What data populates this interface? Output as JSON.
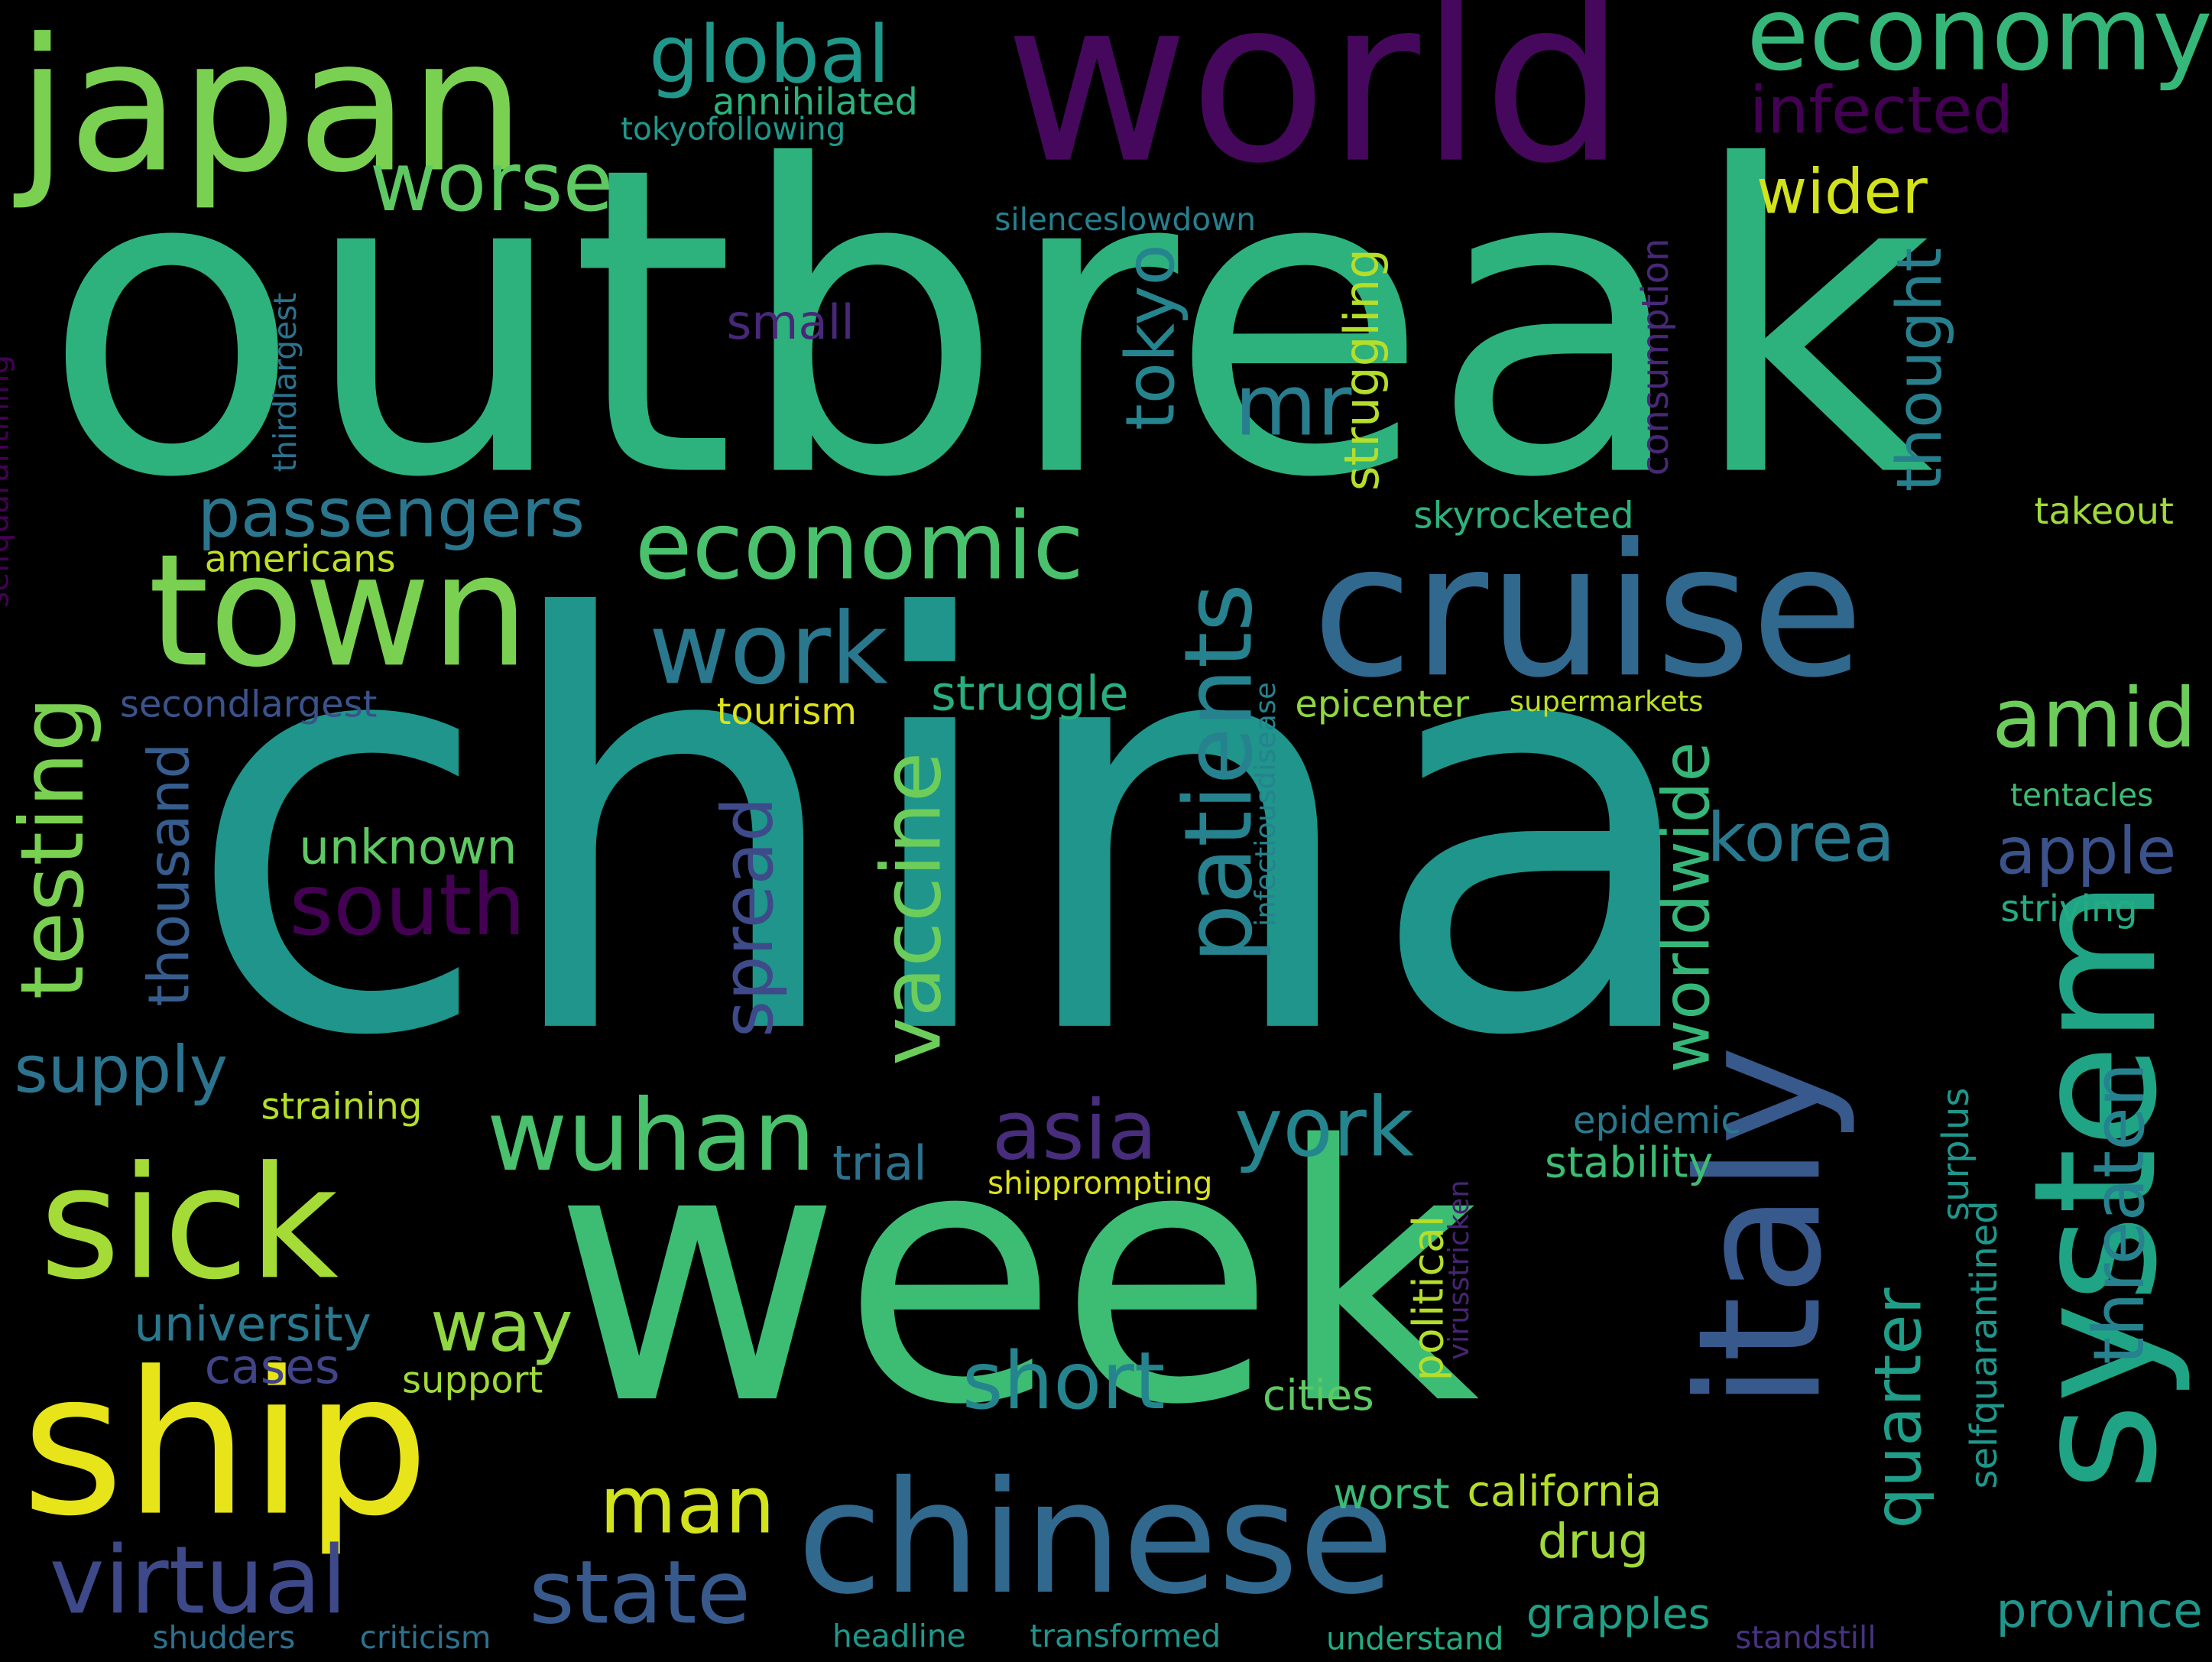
{
  "words": [
    {
      "text": "china",
      "color": "#1f958b",
      "weight": 1.0
    },
    {
      "text": "outbreak",
      "color": "#2db27d",
      "weight": 0.95
    },
    {
      "text": "week",
      "color": "#3dbc74",
      "weight": 0.9
    },
    {
      "text": "world",
      "color": "#46085c",
      "weight": 0.62
    },
    {
      "text": "japan",
      "color": "#7ad151",
      "weight": 0.55
    },
    {
      "text": "cruise",
      "color": "#31688e",
      "weight": 0.52
    },
    {
      "text": "ship",
      "color": "#e7e419",
      "weight": 0.5
    },
    {
      "text": "italy",
      "color": "#38598c",
      "weight": 0.48
    },
    {
      "text": "system",
      "color": "#20a486",
      "weight": 0.46
    },
    {
      "text": "chinese",
      "color": "#31688e",
      "weight": 0.45
    },
    {
      "text": "sick",
      "color": "#a5db36",
      "weight": 0.44
    },
    {
      "text": "town",
      "color": "#7ad151",
      "weight": 0.43
    },
    {
      "text": "economy",
      "color": "#35b779",
      "weight": 0.32
    },
    {
      "text": "wuhan",
      "color": "#4ac16d",
      "weight": 0.3
    },
    {
      "text": "economic",
      "color": "#4ac16d",
      "weight": 0.29
    },
    {
      "text": "patients",
      "color": "#26828e",
      "weight": 0.29
    },
    {
      "text": "testing",
      "color": "#7ad151",
      "weight": 0.28
    },
    {
      "text": "work",
      "color": "#2a788e",
      "weight": 0.27
    },
    {
      "text": "virtual",
      "color": "#3e4989",
      "weight": 0.26
    },
    {
      "text": "state",
      "color": "#38598c",
      "weight": 0.26
    },
    {
      "text": "vaccine",
      "color": "#6ccd5a",
      "weight": 0.26
    },
    {
      "text": "quarter",
      "color": "#1f9e89",
      "weight": 0.25
    },
    {
      "text": "south",
      "color": "#440154",
      "weight": 0.25
    },
    {
      "text": "global",
      "color": "#1f988b",
      "weight": 0.24
    },
    {
      "text": "york",
      "color": "#25858e",
      "weight": 0.24
    },
    {
      "text": "worse",
      "color": "#5ec962",
      "weight": 0.24
    },
    {
      "text": "threaten",
      "color": "#26828e",
      "weight": 0.23
    },
    {
      "text": "amid",
      "color": "#6ccd5a",
      "weight": 0.23
    },
    {
      "text": "asia",
      "color": "#472d7b",
      "weight": 0.22
    },
    {
      "text": "man",
      "color": "#d2e21b",
      "weight": 0.22
    },
    {
      "text": "short",
      "color": "#25858e",
      "weight": 0.22
    },
    {
      "text": "mr",
      "color": "#287d8e",
      "weight": 0.21
    },
    {
      "text": "spread",
      "color": "#3e4a89",
      "weight": 0.21
    },
    {
      "text": "passengers",
      "color": "#2a768e",
      "weight": 0.2
    },
    {
      "text": "infected",
      "color": "#440154",
      "weight": 0.2
    },
    {
      "text": "worldwide",
      "color": "#35b779",
      "weight": 0.2
    },
    {
      "text": "thousand",
      "color": "#365d8d",
      "weight": 0.2
    },
    {
      "text": "korea",
      "color": "#2a788e",
      "weight": 0.19
    },
    {
      "text": "apple",
      "color": "#3b528b",
      "weight": 0.19
    },
    {
      "text": "way",
      "color": "#90d743",
      "weight": 0.19
    },
    {
      "text": "tokyo",
      "color": "#25848e",
      "weight": 0.18
    },
    {
      "text": "supply",
      "color": "#2c738e",
      "weight": 0.18
    },
    {
      "text": "wider",
      "color": "#d2e21b",
      "weight": 0.18
    },
    {
      "text": "thought",
      "color": "#277f8e",
      "weight": 0.18
    },
    {
      "text": "province",
      "color": "#1f968b",
      "weight": 0.16
    },
    {
      "text": "trial",
      "color": "#2c728e",
      "weight": 0.16
    },
    {
      "text": "struggle",
      "color": "#29af7f",
      "weight": 0.15
    },
    {
      "text": "university",
      "color": "#2a788e",
      "weight": 0.15
    },
    {
      "text": "struggling",
      "color": "#b5de2b",
      "weight": 0.15
    },
    {
      "text": "cases",
      "color": "#414487",
      "weight": 0.14
    },
    {
      "text": "small",
      "color": "#482878",
      "weight": 0.14
    },
    {
      "text": "unknown",
      "color": "#5ec962",
      "weight": 0.14
    },
    {
      "text": "california",
      "color": "#b5de2b",
      "weight": 0.14
    },
    {
      "text": "drug",
      "color": "#a0da39",
      "weight": 0.14
    },
    {
      "text": "grapples",
      "color": "#1fa187",
      "weight": 0.13
    },
    {
      "text": "cities",
      "color": "#5ec962",
      "weight": 0.13
    },
    {
      "text": "worst",
      "color": "#3aba76",
      "weight": 0.13
    },
    {
      "text": "political",
      "color": "#b5de2b",
      "weight": 0.13
    },
    {
      "text": "stability",
      "color": "#3dbc74",
      "weight": 0.13
    },
    {
      "text": "selfquarantined",
      "color": "#1f968b",
      "weight": 0.12
    },
    {
      "text": "annihilated",
      "color": "#2db27d",
      "weight": 0.12
    },
    {
      "text": "americans",
      "color": "#bddf26",
      "weight": 0.12
    },
    {
      "text": "secondlargest",
      "color": "#3b528b",
      "weight": 0.12
    },
    {
      "text": "skyrocketed",
      "color": "#2db27d",
      "weight": 0.12
    },
    {
      "text": "consumption",
      "color": "#482878",
      "weight": 0.12
    },
    {
      "text": "epicenter",
      "color": "#90d743",
      "weight": 0.12
    },
    {
      "text": "takeout",
      "color": "#a0da39",
      "weight": 0.12
    },
    {
      "text": "epidemic",
      "color": "#2a788e",
      "weight": 0.12
    },
    {
      "text": "surplus",
      "color": "#1f968b",
      "weight": 0.12
    },
    {
      "text": "striving",
      "color": "#25ab82",
      "weight": 0.12
    },
    {
      "text": "tourism",
      "color": "#dde318",
      "weight": 0.12
    },
    {
      "text": "support",
      "color": "#a0da39",
      "weight": 0.12
    },
    {
      "text": "straining",
      "color": "#b5de2b",
      "weight": 0.12
    },
    {
      "text": "transformed",
      "color": "#1f968b",
      "weight": 0.1
    },
    {
      "text": "tokyofollowing",
      "color": "#1f988b",
      "weight": 0.1
    },
    {
      "text": "selfquarantining",
      "color": "#440154",
      "weight": 0.1
    },
    {
      "text": "thirdlargest",
      "color": "#2c728e",
      "weight": 0.1
    },
    {
      "text": "silenceslowdown",
      "color": "#277f8e",
      "weight": 0.1
    },
    {
      "text": "infectiousdisease",
      "color": "#26828e",
      "weight": 0.1
    },
    {
      "text": "shipprompting",
      "color": "#dde318",
      "weight": 0.1
    },
    {
      "text": "virusstricken",
      "color": "#482475",
      "weight": 0.1
    },
    {
      "text": "understand",
      "color": "#25ab82",
      "weight": 0.1
    },
    {
      "text": "headline",
      "color": "#1f988b",
      "weight": 0.1
    },
    {
      "text": "criticism",
      "color": "#2c728e",
      "weight": 0.1
    },
    {
      "text": "shudders",
      "color": "#2c728e",
      "weight": 0.1
    },
    {
      "text": "standstill",
      "color": "#46337f",
      "weight": 0.1
    },
    {
      "text": "tentacles",
      "color": "#3dbc74",
      "weight": 0.1
    },
    {
      "text": "supermarkets",
      "color": "#bddf26",
      "weight": 0.1
    }
  ]
}
